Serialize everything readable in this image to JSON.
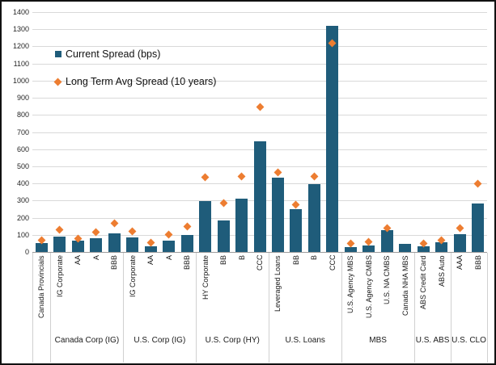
{
  "colors": {
    "bar": "#1f5c7a",
    "diamond": "#ed7d31",
    "gridline": "#d9d9d9",
    "axis_line": "#9b9b9b",
    "separator": "#d0d0d0"
  },
  "chart_data": {
    "type": "bar",
    "title": "",
    "xlabel": "",
    "ylabel": "",
    "ylim": [
      0,
      1400
    ],
    "ytick_step": 100,
    "grid": true,
    "legend_position": "top-left",
    "categories": [
      "Canada Provincials",
      "IG Corporate",
      "AA",
      "A",
      "BBB",
      "IG Corporate",
      "AA",
      "A",
      "BBB",
      "HY Corporate",
      "BB",
      "B",
      "CCC",
      "Leveraged Loans",
      "BB",
      "B",
      "CCC",
      "U.S. Agency MBS",
      "U.S. Agency CMBS",
      "U.S. NA CMBS",
      "Canada NHA MBS",
      "ABS Credit Card",
      "ABS Auto",
      "AAA",
      "BBB"
    ],
    "groups": [
      {
        "label": "",
        "count": 1
      },
      {
        "label": "Canada Corp (IG)",
        "count": 4
      },
      {
        "label": "U.S. Corp (IG)",
        "count": 4
      },
      {
        "label": "U.S. Corp (HY)",
        "count": 4
      },
      {
        "label": "U.S. Loans",
        "count": 4
      },
      {
        "label": "MBS",
        "count": 4
      },
      {
        "label": "U.S. ABS",
        "count": 2
      },
      {
        "label": "U.S. CLO",
        "count": 2
      }
    ],
    "series": [
      {
        "name": "Current Spread (bps)",
        "type": "bar",
        "color": "#1f5c7a",
        "values": [
          50,
          90,
          65,
          80,
          110,
          85,
          35,
          65,
          100,
          295,
          185,
          310,
          645,
          435,
          250,
          395,
          1320,
          30,
          40,
          125,
          45,
          35,
          55,
          105,
          285
        ]
      },
      {
        "name": "Long Term Avg Spread (10 years)",
        "type": "scatter",
        "marker": "diamond",
        "color": "#ed7d31",
        "values": [
          70,
          130,
          80,
          115,
          165,
          120,
          55,
          100,
          150,
          435,
          285,
          440,
          845,
          465,
          275,
          440,
          1220,
          50,
          60,
          140,
          null,
          50,
          70,
          140,
          400
        ]
      }
    ]
  }
}
